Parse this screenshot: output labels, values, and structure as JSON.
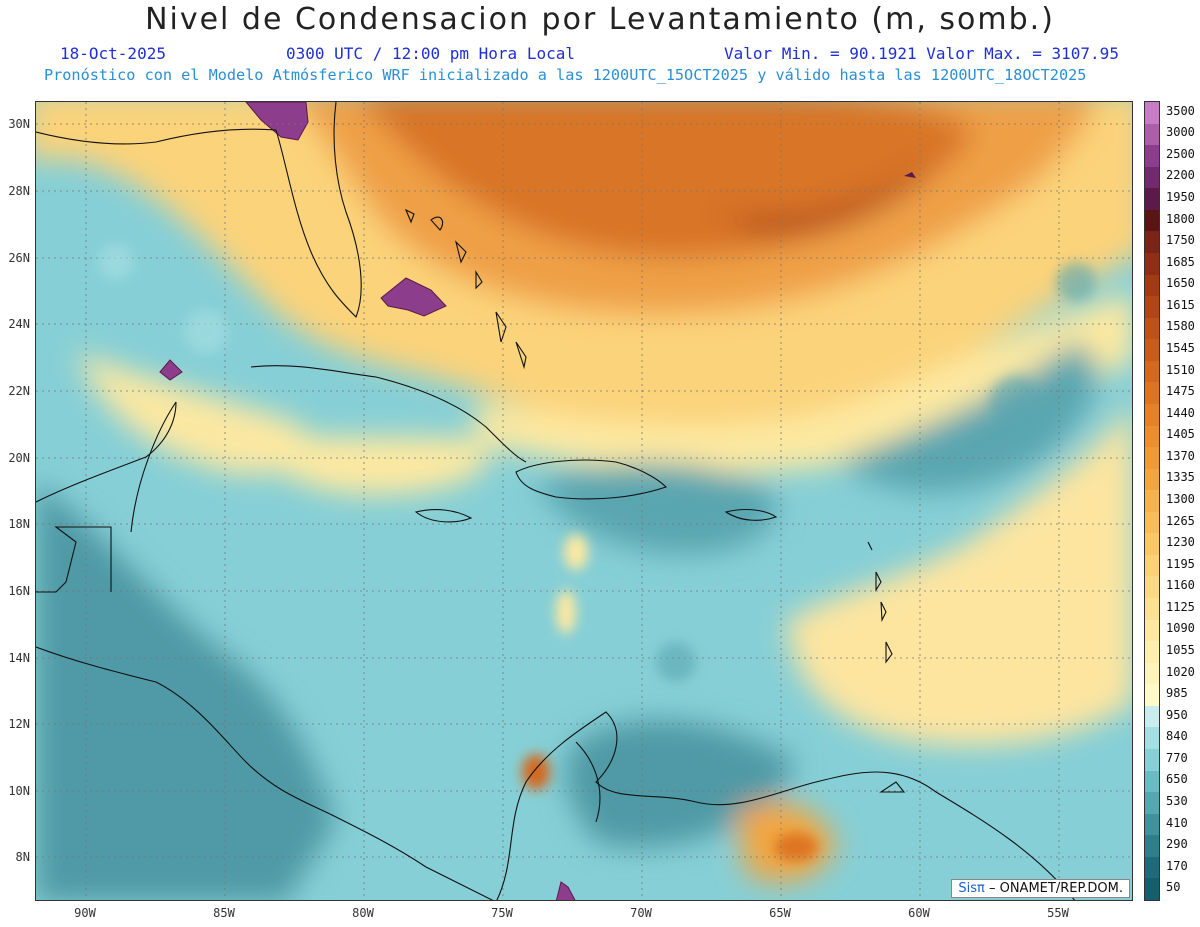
{
  "header": {
    "title": "Nivel de Condensacion por Levantamiento (m, somb.)",
    "date": "18-Oct-2025",
    "time": "0300 UTC / 12:00 pm Hora Local",
    "minmax": "Valor Min. = 90.1921  Valor Max. = 3107.95",
    "model_line": "Pronóstico con el Modelo Atmósferico WRF inicializado a las 1200UTC_15OCT2025 y válido hasta las  1200UTC_18OCT2025"
  },
  "map": {
    "lat_labels": [
      "30N",
      "28N",
      "26N",
      "24N",
      "22N",
      "20N",
      "18N",
      "16N",
      "14N",
      "12N",
      "10N",
      "8N"
    ],
    "lon_labels": [
      "90W",
      "85W",
      "80W",
      "75W",
      "70W",
      "65W",
      "60W",
      "55W"
    ],
    "credit_brand": "Sisπ",
    "credit_text": "– ONAMET/REP.DOM."
  },
  "colorbar": {
    "labels": [
      "3500",
      "3000",
      "2500",
      "2200",
      "1950",
      "1800",
      "1750",
      "1685",
      "1650",
      "1615",
      "1580",
      "1545",
      "1510",
      "1475",
      "1440",
      "1405",
      "1370",
      "1335",
      "1300",
      "1265",
      "1230",
      "1195",
      "1160",
      "1125",
      "1090",
      "1055",
      "1020",
      "985",
      "950",
      "840",
      "770",
      "650",
      "530",
      "410",
      "290",
      "170",
      "50"
    ],
    "colors": [
      "#c77cc4",
      "#ad5ea8",
      "#8c3d8c",
      "#73296e",
      "#5c1a4a",
      "#5a1414",
      "#7a2417",
      "#8f2e15",
      "#a33a14",
      "#b14516",
      "#bd5118",
      "#c95c1a",
      "#d4681d",
      "#dd7421",
      "#e58127",
      "#ec8d2e",
      "#f09a36",
      "#f3a640",
      "#f6b24c",
      "#f8bd58",
      "#f9c766",
      "#fad174",
      "#fbd983",
      "#fce192",
      "#fde9a1",
      "#feefae",
      "#fef4bb",
      "#fff8c7",
      "#c9ecec",
      "#a4e0e3",
      "#86d0d6",
      "#6abcc4",
      "#55a8b2",
      "#40929f",
      "#2f7e8c",
      "#1f6a7a",
      "#155e6e"
    ]
  }
}
